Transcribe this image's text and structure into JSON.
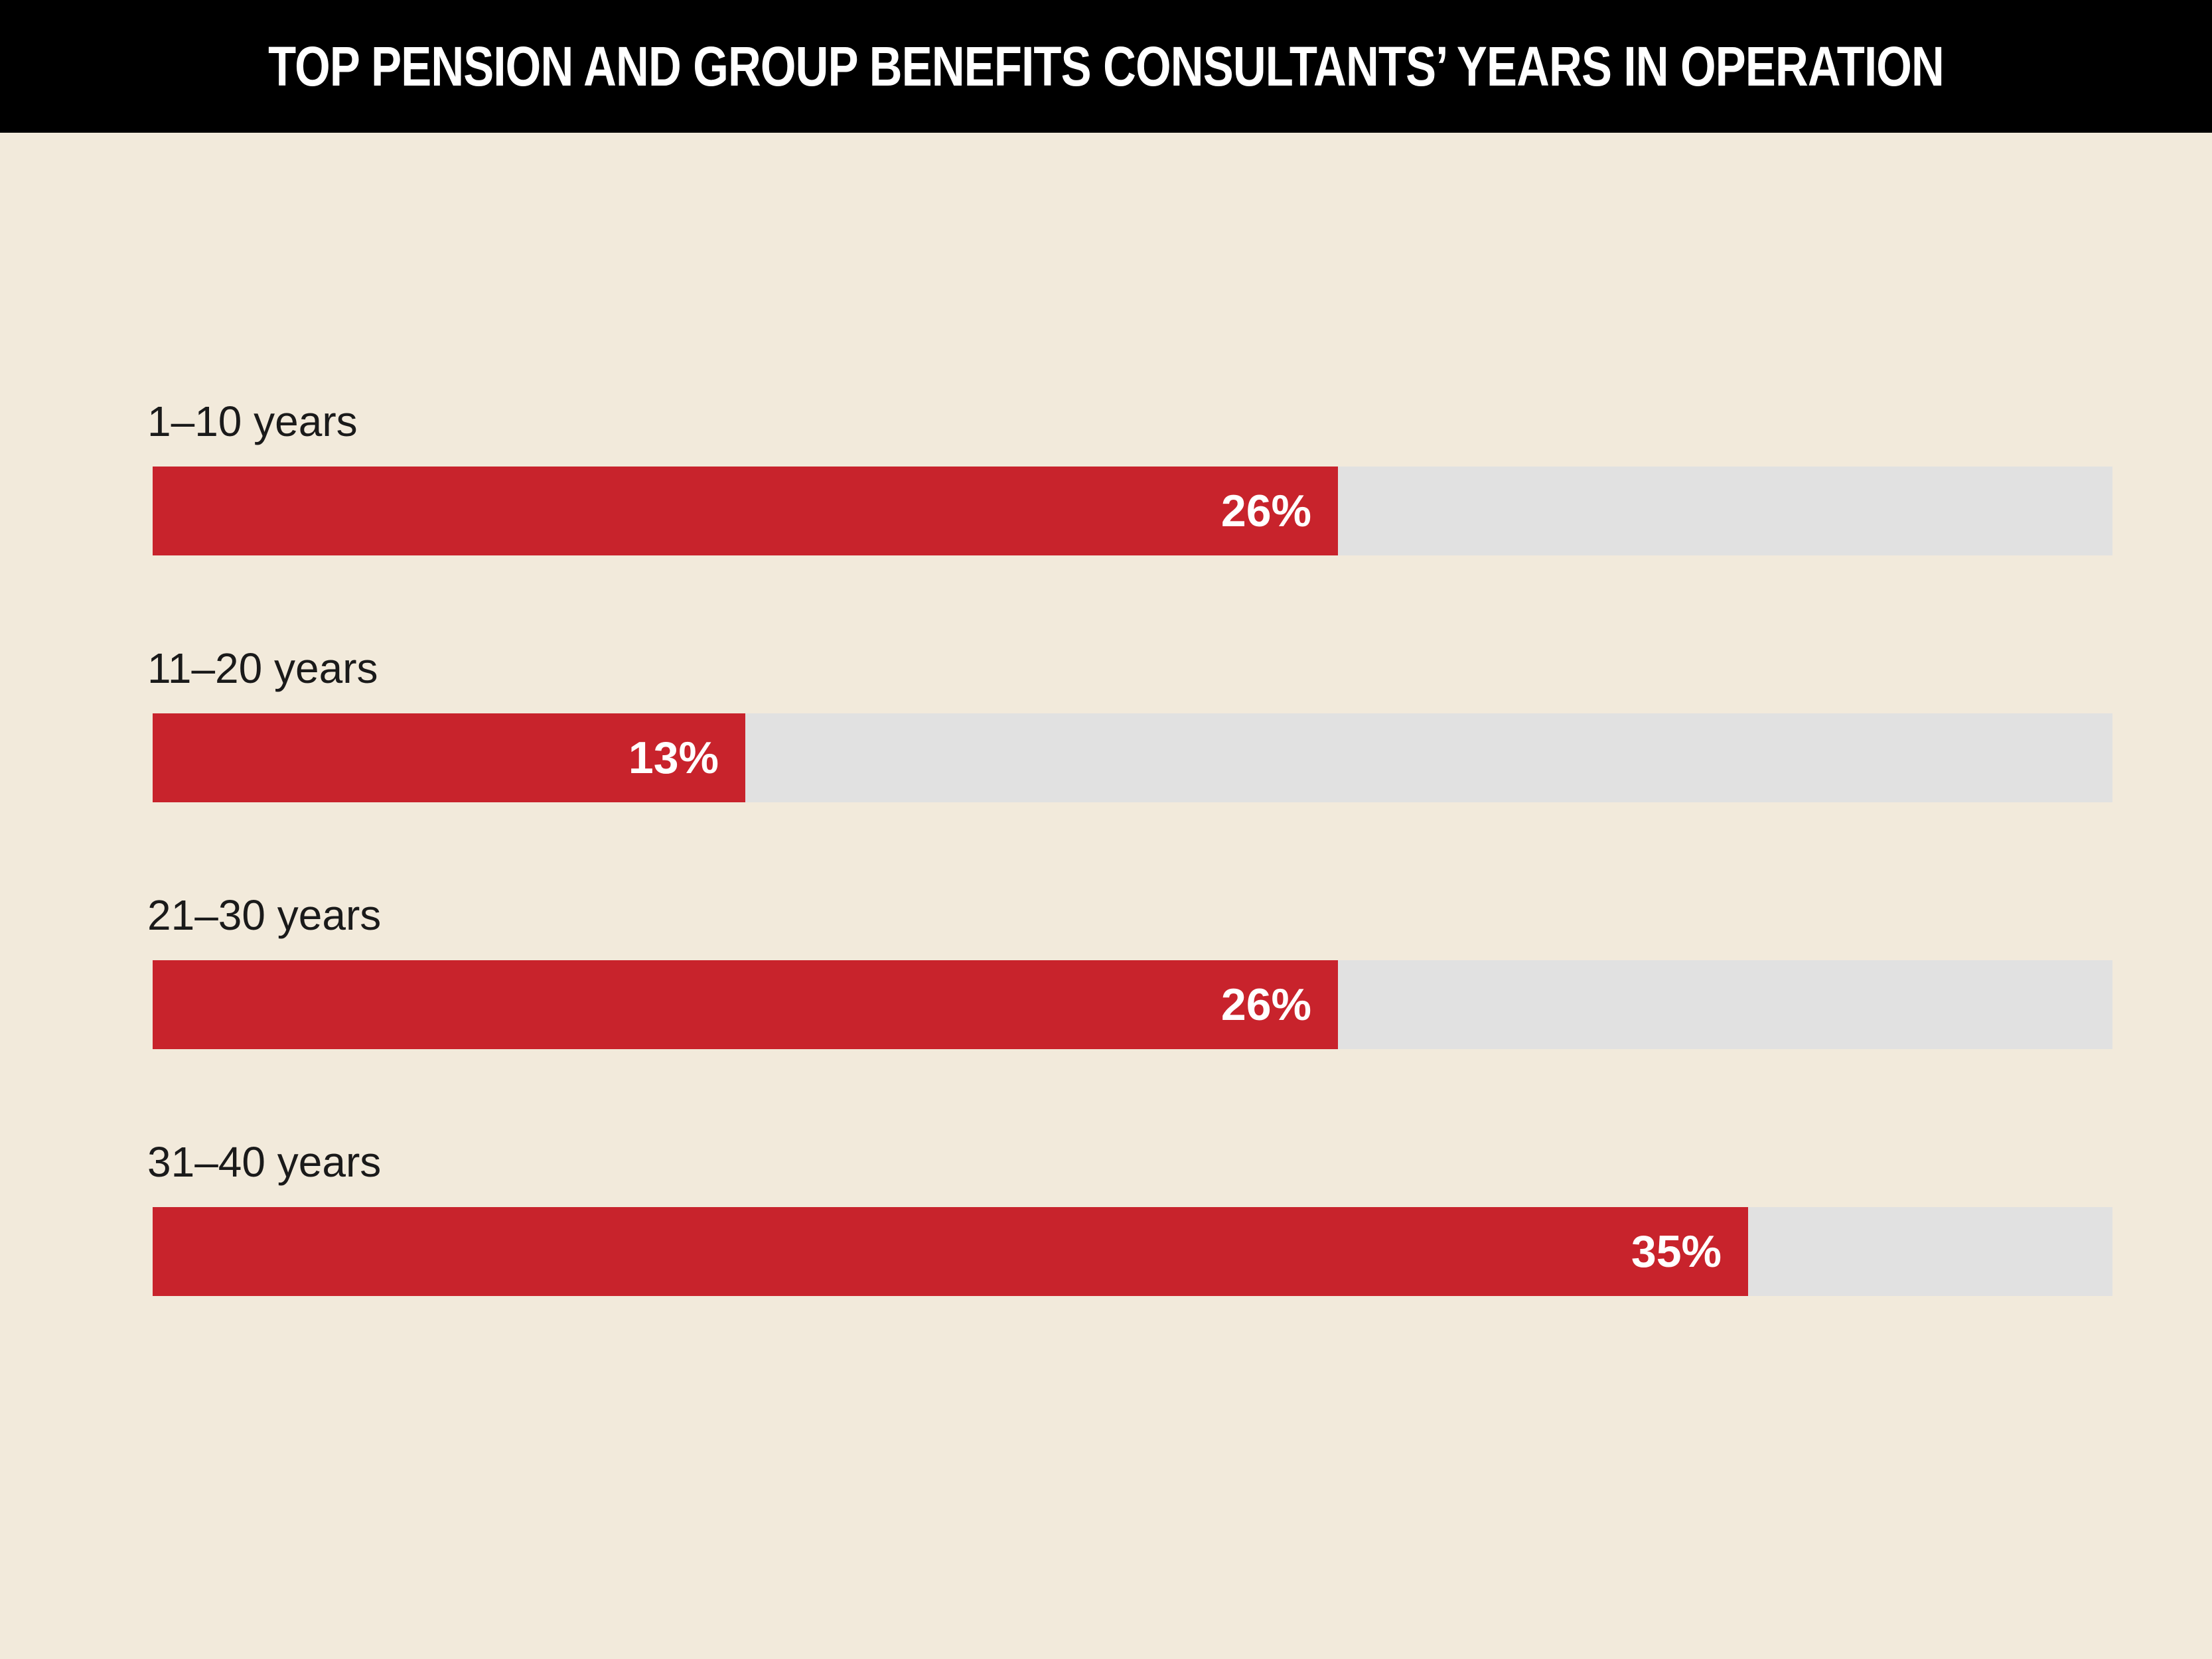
{
  "header": {
    "title": "TOP PENSION AND GROUP BENEFITS CONSULTANTS’ YEARS IN OPERATION"
  },
  "colors": {
    "background": "#f2eadb",
    "title_bar": "#000000",
    "bar_fill": "#c8232c",
    "bar_track": "#e1e1e1",
    "value_text": "#ffffff"
  },
  "chart_data": {
    "type": "bar",
    "orientation": "horizontal",
    "title": "TOP PENSION AND GROUP BENEFITS CONSULTANTS’ YEARS IN OPERATION",
    "categories": [
      "1–10 years",
      "11–20 years",
      "21–30 years",
      "31–40 years"
    ],
    "values": [
      26,
      13,
      26,
      35
    ],
    "value_labels": [
      "26%",
      "13%",
      "26%",
      "35%"
    ],
    "unit": "%",
    "xlim": [
      0,
      43
    ],
    "grid": false,
    "legend": "none"
  }
}
